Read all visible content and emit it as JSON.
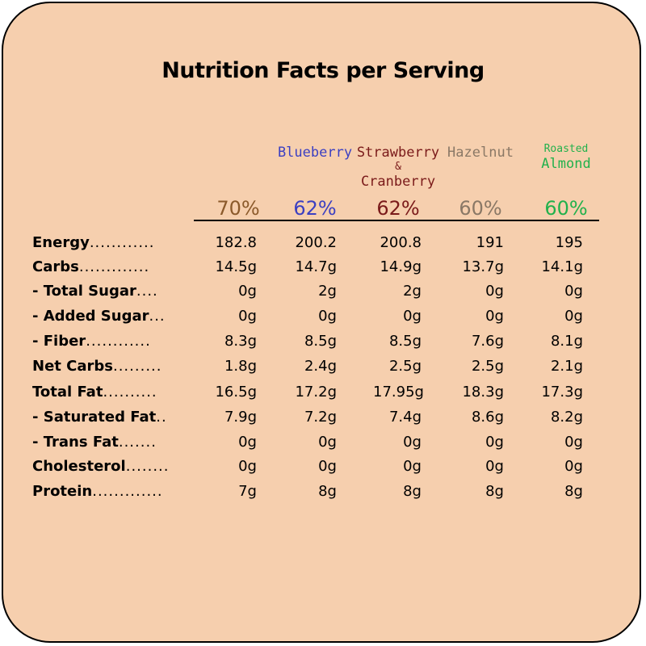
{
  "title": "Nutrition Facts per Serving",
  "columns": [
    {
      "name_lines": [
        "",
        "",
        ""
      ],
      "percent": "70%",
      "color": "#8b5a2b"
    },
    {
      "name_lines": [
        "",
        "",
        "Blueberry"
      ],
      "percent": "62%",
      "color": "#3b3fc2"
    },
    {
      "name_lines": [
        "Strawberry",
        "&",
        "Cranberry"
      ],
      "percent": "62%",
      "color": "#7a1a1a"
    },
    {
      "name_lines": [
        "",
        "",
        "Hazelnut"
      ],
      "percent": "60%",
      "color": "#8a7866"
    },
    {
      "name_lines": [
        "",
        "Roasted",
        "Almond"
      ],
      "percent": "60%",
      "color": "#22b14c"
    }
  ],
  "rows": [
    {
      "label": "Energy",
      "dots": "............",
      "values": [
        "182.8",
        "200.2",
        "200.8",
        "191",
        "195"
      ]
    },
    {
      "label": "Carbs",
      "dots": ".............",
      "values": [
        "14.5g",
        "14.7g",
        "14.9g",
        "13.7g",
        "14.1g"
      ]
    },
    {
      "label": "- Total Sugar",
      "dots": "....",
      "values": [
        "0g",
        "2g",
        "2g",
        "0g",
        "0g"
      ]
    },
    {
      "label": "- Added Sugar",
      "dots": "...",
      "values": [
        "0g",
        "0g",
        "0g",
        "0g",
        "0g"
      ]
    },
    {
      "label": "- Fiber",
      "dots": "............",
      "values": [
        "8.3g",
        "8.5g",
        "8.5g",
        "7.6g",
        "8.1g"
      ]
    },
    {
      "label": "Net Carbs",
      "dots": ".........",
      "values": [
        "1.8g",
        "2.4g",
        "2.5g",
        "2.5g",
        "2.1g"
      ]
    },
    {
      "label": "Total Fat",
      "dots": "..........",
      "values": [
        "16.5g",
        "17.2g",
        "17.95g",
        "18.3g",
        "17.3g"
      ]
    },
    {
      "label": "- Saturated Fat",
      "dots": "..",
      "values": [
        "7.9g",
        "7.2g",
        "7.4g",
        "8.6g",
        "8.2g"
      ]
    },
    {
      "label": "- Trans Fat",
      "dots": ".......",
      "values": [
        "0g",
        "0g",
        "0g",
        "0g",
        "0g"
      ]
    },
    {
      "label": "Cholesterol",
      "dots": "........",
      "values": [
        "0g",
        "0g",
        "0g",
        "0g",
        "0g"
      ]
    },
    {
      "label": "Protein",
      "dots": ".............",
      "values": [
        "7g",
        "8g",
        "8g",
        "8g",
        "8g"
      ]
    }
  ]
}
